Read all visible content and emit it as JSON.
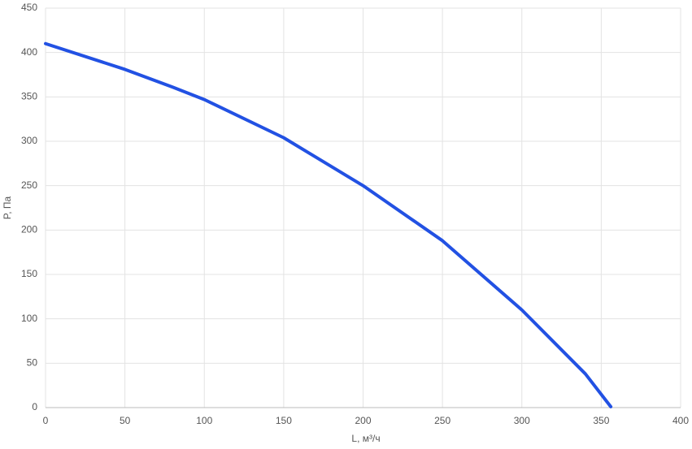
{
  "chart_data": {
    "type": "line",
    "x_label": "L, м³/ч",
    "y_label": "P, Па",
    "x": [
      0,
      50,
      80,
      100,
      150,
      200,
      250,
      300,
      340,
      356
    ],
    "series": [
      {
        "color": "#2251e3",
        "values": [
          410,
          381,
          361,
          347,
          304,
          250,
          188,
          110,
          38,
          1
        ]
      }
    ],
    "xlim": [
      0,
      400
    ],
    "xticks": [
      0,
      50,
      100,
      150,
      200,
      250,
      300,
      350,
      400
    ],
    "ylim": [
      0,
      450
    ],
    "yticks": [
      0,
      50,
      100,
      150,
      200,
      250,
      300,
      350,
      400,
      450
    ],
    "grid": true
  }
}
